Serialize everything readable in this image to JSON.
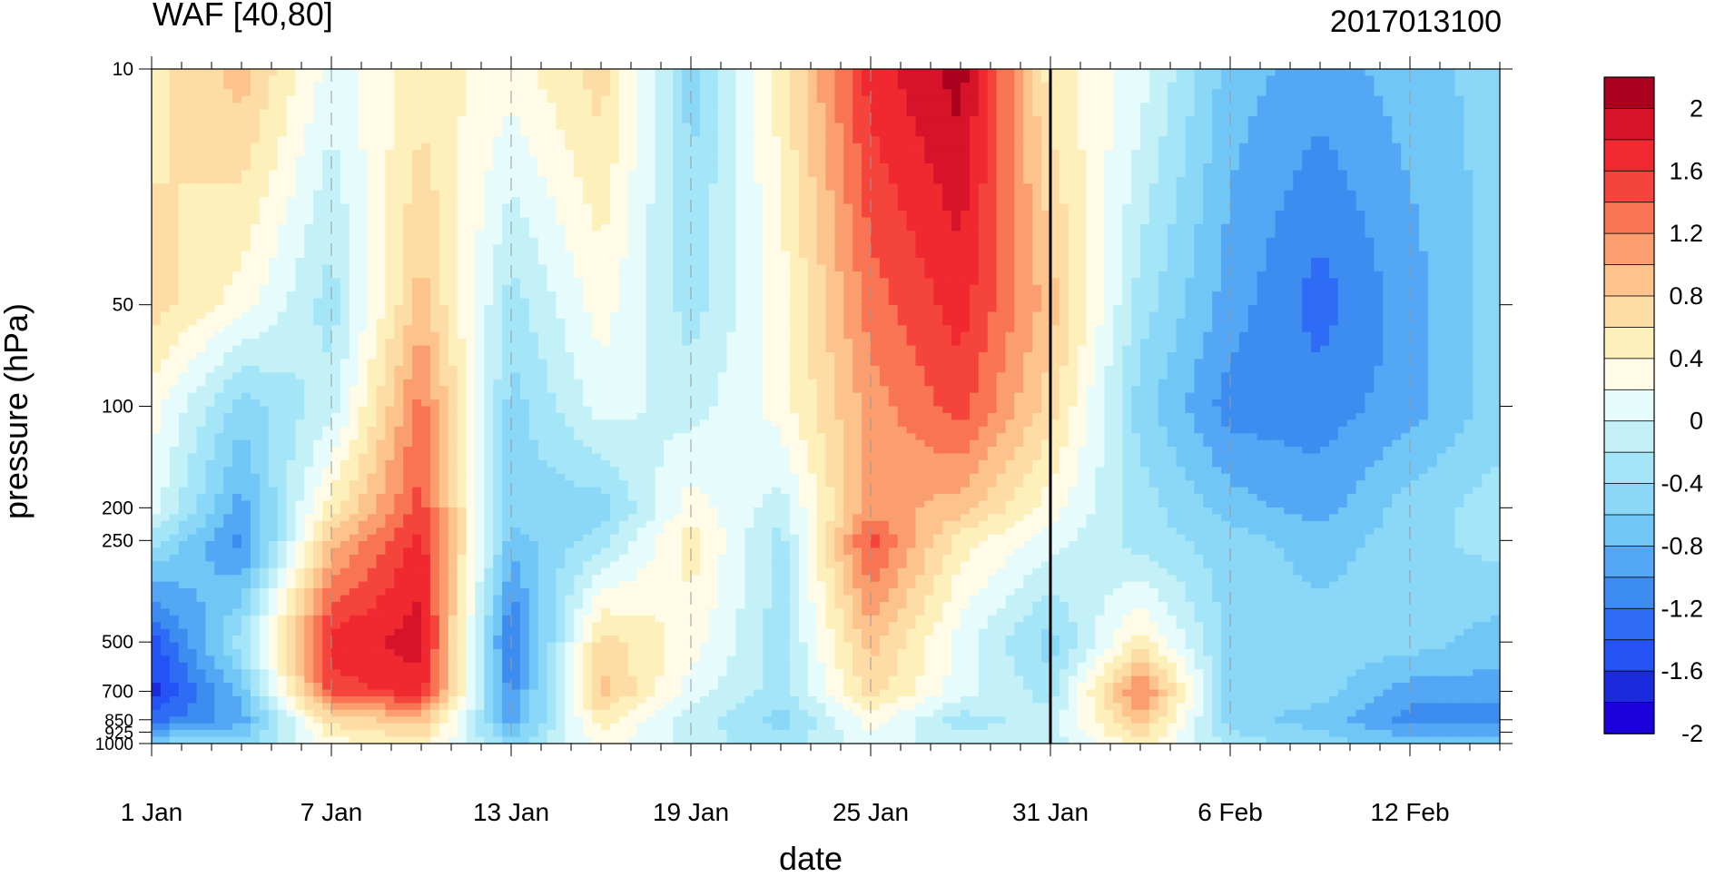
{
  "chart_data": {
    "type": "heatmap",
    "title": "WAF [40,80]",
    "subtitle": "2017013100",
    "xlabel": "date",
    "ylabel": "pressure (hPa)",
    "x_tick_labels": [
      "1 Jan",
      "7 Jan",
      "13 Jan",
      "19 Jan",
      "25 Jan",
      "31 Jan",
      "6 Feb",
      "12 Feb"
    ],
    "x_tick_days": [
      0,
      6,
      12,
      18,
      24,
      30,
      36,
      42
    ],
    "x_range_days": [
      0,
      45
    ],
    "y_tick_labels": [
      "10",
      "50",
      "100",
      "200",
      "250",
      "500",
      "700",
      "850",
      "925",
      "1000"
    ],
    "y_ticks": [
      10,
      50,
      100,
      200,
      250,
      500,
      700,
      850,
      925,
      1000
    ],
    "y_range": [
      10,
      1000
    ],
    "y_scale": "log",
    "marked_date_day": 30,
    "colorbar": {
      "levels": [
        -2,
        -1.8,
        -1.6,
        -1.4,
        -1.2,
        -1,
        -0.8,
        -0.6,
        -0.4,
        -0.2,
        0,
        0.2,
        0.4,
        0.6,
        0.8,
        1,
        1.2,
        1.4,
        1.6,
        1.8,
        2
      ],
      "labels": [
        "2",
        "1.6",
        "1.2",
        "0.8",
        "0.4",
        "0",
        "-0.4",
        "-0.8",
        "-1.2",
        "-1.6",
        "-2"
      ],
      "colors": [
        "#1b00dc",
        "#1b2bdc",
        "#2452f5",
        "#2f6cf5",
        "#3d8cf0",
        "#53a7f5",
        "#70c6f5",
        "#8ad7f7",
        "#a5e5f8",
        "#c4f1f8",
        "#e6fbfc",
        "#fffbe6",
        "#fef0bb",
        "#fddca6",
        "#fcc38c",
        "#fb9e6f",
        "#f87452",
        "#f5443c",
        "#f0282f",
        "#d7132a",
        "#a8001d"
      ]
    },
    "field_days": [
      0,
      3,
      6,
      9,
      12,
      15,
      18,
      21,
      24,
      27,
      30,
      33,
      36,
      39,
      42,
      45
    ],
    "field_levels": [
      10,
      50,
      100,
      200,
      250,
      500,
      700,
      850,
      1000
    ],
    "values": [
      [
        0.4,
        0.8,
        0.0,
        0.4,
        0.2,
        0.6,
        -0.6,
        0.4,
        1.6,
        2.0,
        0.4,
        0.0,
        -0.8,
        -1.0,
        -0.8,
        -0.6
      ],
      [
        0.6,
        0.2,
        -0.4,
        0.8,
        -0.4,
        0.2,
        -0.4,
        0.2,
        1.2,
        1.6,
        0.8,
        -0.4,
        -1.0,
        -1.4,
        -1.0,
        -0.6
      ],
      [
        0.2,
        -0.6,
        -0.2,
        1.2,
        -0.6,
        0.0,
        -0.2,
        0.2,
        1.0,
        1.4,
        0.6,
        -0.6,
        -1.2,
        -1.2,
        -1.0,
        -0.6
      ],
      [
        0.0,
        -1.0,
        0.4,
        1.4,
        -0.6,
        -0.6,
        0.2,
        -0.2,
        1.0,
        0.8,
        0.2,
        -0.4,
        -0.8,
        -1.0,
        -0.6,
        -0.4
      ],
      [
        -0.4,
        -1.2,
        0.8,
        1.6,
        -0.8,
        -0.4,
        0.4,
        -0.4,
        1.4,
        0.4,
        0.0,
        -0.4,
        -0.6,
        -0.8,
        -0.6,
        -0.4
      ],
      [
        -1.6,
        -0.4,
        1.6,
        1.8,
        -1.4,
        0.6,
        0.2,
        -0.4,
        0.8,
        0.0,
        -0.6,
        0.4,
        -0.6,
        -0.6,
        -0.6,
        -0.8
      ],
      [
        -1.8,
        -0.8,
        1.4,
        1.6,
        -1.2,
        0.8,
        0.0,
        -0.4,
        0.6,
        0.0,
        -0.4,
        1.2,
        -0.6,
        -0.6,
        -1.0,
        -1.0
      ],
      [
        -1.4,
        -1.0,
        0.6,
        0.8,
        -1.0,
        0.4,
        -0.2,
        -0.6,
        0.2,
        -0.4,
        -0.2,
        0.8,
        -0.6,
        -0.8,
        -1.2,
        -1.2
      ],
      [
        -0.6,
        -0.6,
        0.2,
        0.4,
        -0.6,
        0.2,
        -0.2,
        -0.4,
        0.0,
        -0.2,
        -0.2,
        0.4,
        -0.4,
        -0.6,
        -0.8,
        -0.8
      ]
    ]
  }
}
